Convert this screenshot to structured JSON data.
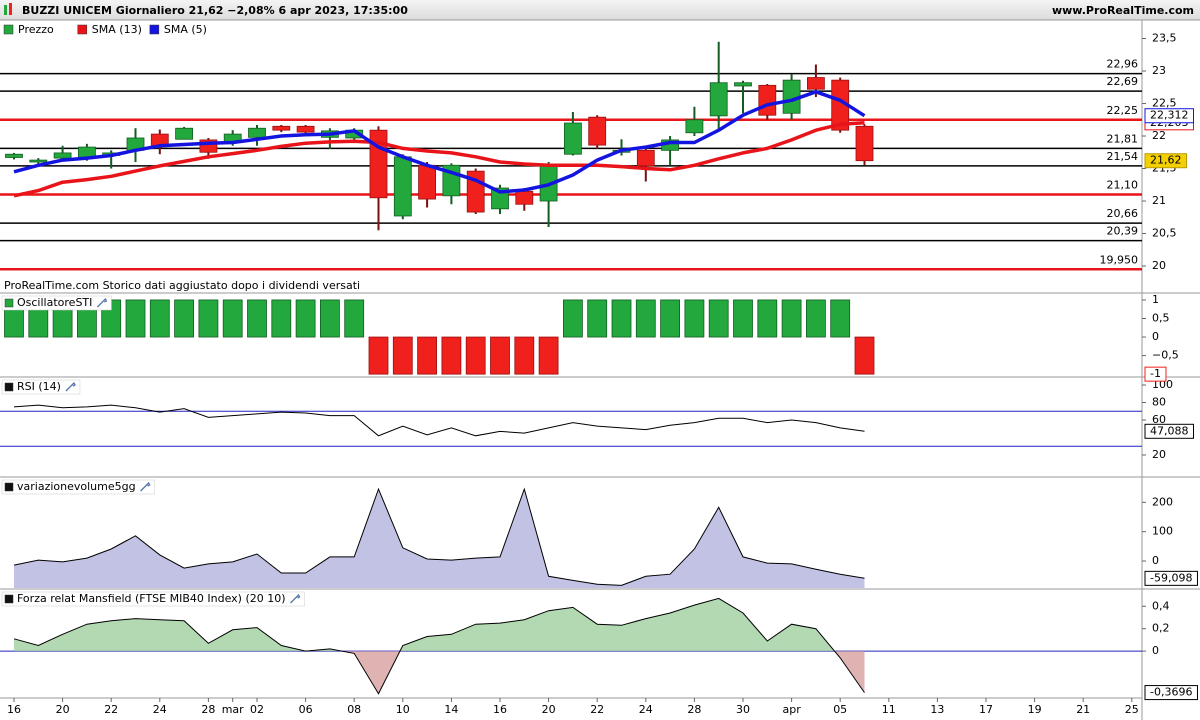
{
  "header": {
    "title": "BUZZI UNICEM Giornaliero 21,62 −2,08% 6 apr 2023, 17:35:00",
    "site": "www.ProRealTime.com",
    "note": "ProRealTime.com  Storico dati aggiustato dopo i dividendi versati"
  },
  "x_axis": {
    "categories": [
      "16",
      null,
      "20",
      null,
      "22",
      null,
      "24",
      null,
      "28",
      "mar",
      "02",
      null,
      "06",
      null,
      "08",
      null,
      "10",
      null,
      "14",
      null,
      "16",
      null,
      "20",
      null,
      "22",
      null,
      "24",
      null,
      "28",
      null,
      "30",
      null,
      "apr",
      null,
      "05",
      null,
      "11",
      null,
      "13",
      null,
      "17",
      null,
      "19",
      null,
      "21",
      "",
      "25"
    ]
  },
  "chart_data": [
    {
      "type": "candlestick",
      "ylim": [
        19.585,
        23.785
      ],
      "yticks": [
        {
          "value": 23.5,
          "label": "23,5"
        },
        23,
        {
          "value": 22.5,
          "label": "22,5"
        },
        22,
        {
          "value": 21.5,
          "label": "21,5"
        },
        21,
        {
          "value": 20.5,
          "label": "20,5"
        },
        20
      ],
      "levels": [
        {
          "value": 22.96,
          "label": "22,96",
          "color": "#000000"
        },
        {
          "value": 22.69,
          "label": "22,69",
          "color": "#000000"
        },
        {
          "value": 22.25,
          "label": "22,25",
          "color": "#e8141a"
        },
        {
          "value": 21.81,
          "label": "21,81",
          "color": "#000000"
        },
        {
          "value": 21.54,
          "label": "21,54",
          "color": "#000000"
        },
        {
          "value": 21.1,
          "label": "21,10",
          "color": "#e8141a"
        },
        {
          "value": 20.66,
          "label": "20,66",
          "color": "#000000"
        },
        {
          "value": 20.39,
          "label": "20,39",
          "color": "#000000"
        },
        {
          "value": 19.95,
          "label": "19,950",
          "color": "#e8141a"
        }
      ],
      "candles": {
        "name": "Prezzo",
        "up_color": "#22a83c",
        "down_color": "#f0201c",
        "last_label": "21,62",
        "open": [
          21.67,
          21.6,
          21.66,
          21.66,
          21.7,
          21.78,
          22.03,
          21.95,
          21.94,
          21.91,
          21.98,
          22.15,
          22.15,
          21.98,
          21.97,
          22.09,
          20.77,
          21.55,
          21.08,
          21.46,
          20.88,
          21.15,
          21.0,
          21.72,
          22.29,
          21.75,
          21.78,
          21.78,
          22.05,
          22.31,
          22.77,
          22.78,
          22.35,
          22.9,
          22.86,
          22.15
        ],
        "high": [
          21.74,
          21.66,
          21.85,
          21.88,
          21.78,
          22.12,
          22.1,
          22.14,
          21.97,
          22.09,
          22.17,
          22.17,
          22.17,
          22.12,
          22.12,
          22.15,
          21.72,
          21.6,
          21.58,
          21.5,
          21.25,
          21.2,
          21.6,
          22.37,
          22.32,
          21.95,
          21.85,
          22.0,
          22.45,
          23.45,
          22.85,
          22.8,
          22.95,
          23.1,
          22.9,
          22.18
        ],
        "low": [
          21.64,
          21.55,
          21.62,
          21.62,
          21.5,
          21.6,
          21.72,
          21.95,
          21.65,
          21.85,
          21.85,
          22.06,
          22.0,
          21.8,
          21.9,
          20.55,
          20.72,
          20.9,
          20.95,
          20.8,
          20.8,
          20.85,
          20.6,
          21.7,
          21.8,
          21.7,
          21.3,
          21.55,
          22.0,
          22.1,
          22.35,
          22.25,
          22.25,
          22.6,
          22.05,
          21.55
        ],
        "close": [
          21.72,
          21.63,
          21.74,
          21.83,
          21.74,
          21.97,
          21.85,
          22.12,
          21.75,
          22.03,
          22.12,
          22.09,
          22.06,
          22.08,
          22.09,
          21.05,
          21.68,
          21.03,
          21.55,
          20.83,
          21.2,
          20.95,
          21.54,
          22.2,
          21.86,
          21.78,
          21.54,
          21.94,
          22.25,
          22.82,
          22.82,
          22.32,
          22.86,
          22.72,
          22.09,
          21.62
        ]
      },
      "series": [
        {
          "name": "SMA (13)",
          "color": "#e8141a",
          "last_label": "22,203",
          "values": [
            21.08,
            21.16,
            21.29,
            21.33,
            21.38,
            21.46,
            21.54,
            21.61,
            21.68,
            21.73,
            21.78,
            21.84,
            21.89,
            21.91,
            21.92,
            21.9,
            21.81,
            21.77,
            21.74,
            21.68,
            21.6,
            21.57,
            21.55,
            21.55,
            21.55,
            21.53,
            21.5,
            21.48,
            21.55,
            21.65,
            21.74,
            21.81,
            21.94,
            22.09,
            22.18,
            22.203
          ]
        },
        {
          "name": "SMA (5)",
          "color": "#1414e0",
          "last_label": "22,312",
          "values": [
            21.45,
            21.55,
            21.63,
            21.66,
            21.7,
            21.78,
            21.85,
            21.87,
            21.89,
            21.9,
            21.95,
            22.0,
            22.02,
            22.03,
            22.08,
            21.83,
            21.68,
            21.55,
            21.44,
            21.32,
            21.14,
            21.17,
            21.25,
            21.4,
            21.63,
            21.78,
            21.83,
            21.9,
            21.9,
            22.09,
            22.32,
            22.48,
            22.55,
            22.68,
            22.55,
            22.312
          ]
        }
      ]
    },
    {
      "type": "bar",
      "title": "OscillatoreSTI",
      "ylim": [
        -1.05,
        1.16
      ],
      "up_color": "#22a83c",
      "down_color": "#f0201c",
      "last_label": "-1",
      "yticks": [
        1,
        {
          "value": 0.5,
          "label": "0,5"
        },
        0,
        {
          "value": -0.5,
          "label": "−0,5"
        }
      ],
      "values": [
        1,
        1,
        1,
        1,
        1,
        1,
        1,
        1,
        1,
        1,
        1,
        1,
        1,
        1,
        1,
        -1,
        -1,
        -1,
        -1,
        -1,
        -1,
        -1,
        -1,
        1,
        1,
        1,
        1,
        1,
        1,
        1,
        1,
        1,
        1,
        1,
        1,
        -1
      ]
    },
    {
      "type": "line",
      "title": "RSI (14)",
      "ylim": [
        -4,
        108
      ],
      "color": "#000000",
      "last_label": "47,088",
      "yticks": [
        100,
        80,
        60,
        20
      ],
      "levels": [
        70,
        30
      ],
      "level_color": "#2020c0",
      "values": [
        75,
        77,
        74,
        75,
        77,
        74,
        69,
        73,
        63,
        65,
        67,
        69,
        68,
        65,
        65,
        42,
        53,
        43,
        51,
        42,
        47,
        45,
        51,
        57,
        53,
        51,
        49,
        54,
        57,
        62,
        62,
        57,
        60,
        57,
        51,
        47.088
      ]
    },
    {
      "type": "area",
      "title": "variazionevolume5gg",
      "ylim": [
        -92,
        283
      ],
      "color": "#000000",
      "fill": "#a8a8d8",
      "last_label": "-59,098",
      "yticks": [
        200,
        100,
        0
      ],
      "values": [
        -14,
        3,
        -3,
        10,
        41,
        86,
        21,
        -24,
        -10,
        -3,
        24,
        -41,
        -41,
        14,
        14,
        245,
        45,
        7,
        3,
        10,
        14,
        245,
        -52,
        -66,
        -79,
        -83,
        -52,
        -45,
        41,
        183,
        14,
        -7,
        -10,
        -28,
        -45,
        -59.098
      ]
    },
    {
      "type": "area",
      "title": "Forza relat Mansfield (FTSE MIB40 Index) (20 10)",
      "ylim": [
        -0.418,
        0.545
      ],
      "color": "#000000",
      "fill": "#9fcf9f",
      "neg_fill": "#d8a0a0",
      "last_label": "-0,3696",
      "yticks": [
        {
          "value": 0.4,
          "label": "0,4"
        },
        {
          "value": 0.2,
          "label": "0,2"
        },
        0
      ],
      "levels": [
        0
      ],
      "level_color": "#2020c0",
      "values": [
        0.11,
        0.05,
        0.15,
        0.24,
        0.27,
        0.29,
        0.28,
        0.27,
        0.07,
        0.19,
        0.21,
        0.05,
        0,
        0.02,
        -0.02,
        -0.38,
        0.05,
        0.13,
        0.15,
        0.24,
        0.25,
        0.28,
        0.36,
        0.39,
        0.24,
        0.23,
        0.29,
        0.34,
        0.41,
        0.47,
        0.34,
        0.09,
        0.24,
        0.2,
        -0.06,
        -0.3696
      ]
    }
  ]
}
